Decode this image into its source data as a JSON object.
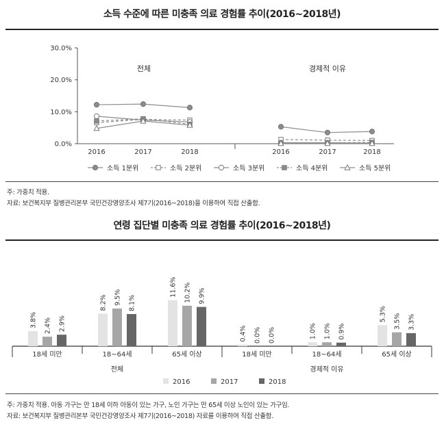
{
  "chart1": {
    "title": "소득 수준에 따른 미충족 의료 경험률 추이(2016~2018년)",
    "notes": [
      "주: 가중치 적용.",
      "자료: 보건복지부 질병관리본부 국민건강영양조사 제7기(2016~2018)을 이용하여 직접 산출함."
    ]
  },
  "chart2": {
    "title": "연령 집단별 미충족 의료 경험률 추이(2016~2018년)",
    "notes": [
      "주: 가중치 적용. 아동 가구는 만 18세 이하 아동이 있는 가구, 노인 가구는 만 65세 이상 노인이 있는 가구임.",
      "자료: 보건복지부 질병관리본부 국민건강영양조사 제7기(2016~2018) 자료를 이용하여 직접 산출함."
    ]
  },
  "chart_data": [
    {
      "type": "line",
      "title": "소득 수준에 따른 미충족 의료 경험률 추이(2016~2018년)",
      "panels": [
        "전체",
        "경제적 이유"
      ],
      "x": [
        "2016",
        "2017",
        "2018"
      ],
      "ylim": [
        0,
        30
      ],
      "yticks": [
        "0.0%",
        "10.0%",
        "20.0%",
        "30.0%"
      ],
      "legend_position": "bottom",
      "series": [
        {
          "name": "소득 1분위",
          "marker": "filled-circle",
          "line": "solid",
          "values": {
            "전체": [
              12.2,
              12.4,
              11.3
            ],
            "경제적 이유": [
              5.3,
              3.5,
              3.8
            ]
          }
        },
        {
          "name": "소득 2분위",
          "marker": "open-square",
          "line": "dashed",
          "values": {
            "전체": [
              6.6,
              7.6,
              7.4
            ],
            "경제적 이유": [
              1.3,
              1.1,
              1.0
            ]
          }
        },
        {
          "name": "소득 3분위",
          "marker": "open-circle",
          "line": "solid",
          "values": {
            "전체": [
              8.6,
              7.4,
              6.8
            ],
            "경제적 이유": [
              0.3,
              0.3,
              0.2
            ]
          }
        },
        {
          "name": "소득 4분위",
          "marker": "filled-square",
          "line": "dashed",
          "values": {
            "전체": [
              7.1,
              7.8,
              6.1
            ],
            "경제적 이유": [
              0.2,
              0.2,
              0.4
            ]
          }
        },
        {
          "name": "소득 5분위",
          "marker": "open-triangle",
          "line": "solid",
          "values": {
            "전체": [
              4.8,
              7.1,
              5.8
            ],
            "경제적 이유": [
              0.1,
              0.1,
              0.1
            ]
          }
        }
      ],
      "colors": {
        "line": "#8c8c8c",
        "axis": "#555555"
      }
    },
    {
      "type": "bar",
      "title": "연령 집단별 미충족 의료 경험률 추이(2016~2018년)",
      "groups": [
        "전체",
        "경제적 이유"
      ],
      "categories": [
        "18세 미만",
        "18~64세",
        "65세 이상",
        "18세 미만",
        "18~64세",
        "65세 이상"
      ],
      "legend_position": "bottom",
      "series": [
        {
          "name": "2016",
          "color": "#e3e3e3",
          "values": [
            3.8,
            8.2,
            11.6,
            0.4,
            1.0,
            5.3
          ],
          "labels": [
            "3.8%",
            "8.2%",
            "11.6%",
            "0.4%",
            "1.0%",
            "5.3%"
          ]
        },
        {
          "name": "2017",
          "color": "#a6a6a6",
          "values": [
            2.4,
            9.5,
            10.2,
            0.0,
            1.0,
            3.5
          ],
          "labels": [
            "2.4%",
            "9.5%",
            "10.2%",
            "0.0%",
            "1.0%",
            "3.5%"
          ]
        },
        {
          "name": "2018",
          "color": "#666666",
          "values": [
            2.9,
            8.1,
            9.9,
            0.0,
            0.9,
            3.3
          ],
          "labels": [
            "2.9%",
            "8.1%",
            "9.9%",
            "0.0%",
            "0.9%",
            "3.3%"
          ]
        }
      ]
    }
  ]
}
